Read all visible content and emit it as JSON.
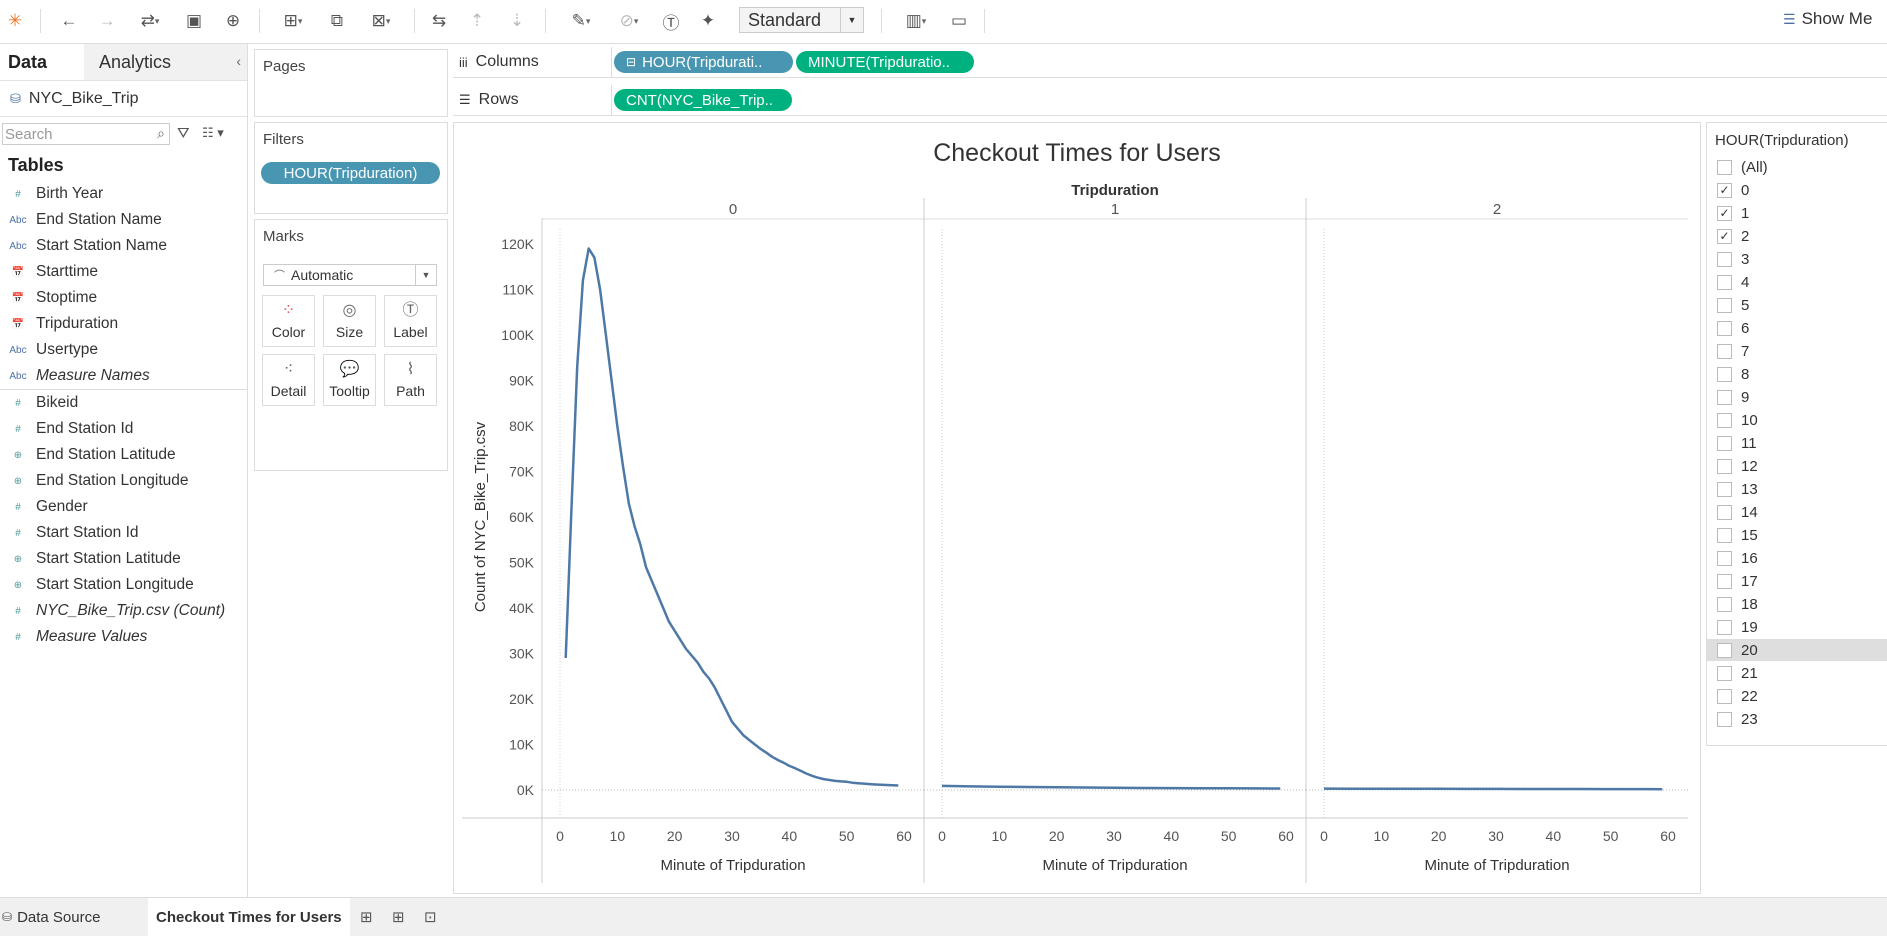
{
  "toolbar": {
    "view_mode": "Standard",
    "show_me": "Show Me",
    "icons": [
      "tableau-logo-icon",
      "undo-icon",
      "redo-icon",
      "replay-icon",
      "save-icon",
      "new-datasource-icon",
      "new-worksheet-icon",
      "duplicate-icon",
      "clear-icon",
      "swap-icon",
      "sort-asc-icon",
      "sort-desc-icon",
      "highlight-icon",
      "group-icon",
      "label-icon",
      "pin-icon",
      "fit-icon",
      "presentation-icon"
    ]
  },
  "data_pane": {
    "tab_data": "Data",
    "tab_analytics": "Analytics",
    "datasource": "NYC_Bike_Trip",
    "search_placeholder": "Search",
    "tables_heading": "Tables",
    "dimensions": [
      {
        "type": "#",
        "name": "Birth Year"
      },
      {
        "type": "Abc",
        "name": "End Station Name"
      },
      {
        "type": "Abc",
        "name": "Start Station Name"
      },
      {
        "type": "date",
        "name": "Starttime"
      },
      {
        "type": "date",
        "name": "Stoptime"
      },
      {
        "type": "date",
        "name": "Tripduration"
      },
      {
        "type": "Abc",
        "name": "Usertype"
      },
      {
        "type": "Abc",
        "name": "Measure Names"
      }
    ],
    "measures": [
      {
        "type": "#",
        "name": "Bikeid"
      },
      {
        "type": "#",
        "name": "End Station Id"
      },
      {
        "type": "geo",
        "name": "End Station Latitude"
      },
      {
        "type": "geo",
        "name": "End Station Longitude"
      },
      {
        "type": "#",
        "name": "Gender"
      },
      {
        "type": "#",
        "name": "Start Station Id"
      },
      {
        "type": "geo",
        "name": "Start Station Latitude"
      },
      {
        "type": "geo",
        "name": "Start Station Longitude"
      },
      {
        "type": "#",
        "name": "NYC_Bike_Trip.csv (Count)"
      },
      {
        "type": "#",
        "name": "Measure Values"
      }
    ]
  },
  "pages_card": {
    "title": "Pages"
  },
  "filters_card": {
    "title": "Filters",
    "pill": "HOUR(Tripduration)"
  },
  "marks_card": {
    "title": "Marks",
    "type": "Automatic",
    "buttons": [
      "Color",
      "Size",
      "Label",
      "Detail",
      "Tooltip",
      "Path"
    ]
  },
  "shelves": {
    "columns_label": "Columns",
    "columns_pills": [
      "HOUR(Tripdurati..",
      "MINUTE(Tripduratio.."
    ],
    "rows_label": "Rows",
    "rows_pills": [
      "CNT(NYC_Bike_Trip.."
    ]
  },
  "chart_data": {
    "type": "line",
    "title": "Checkout Times for Users",
    "header_label": "Tripduration",
    "panels": [
      "0",
      "1",
      "2"
    ],
    "xlabel": "Minute of Tripduration",
    "ylabel": "Count of NYC_Bike_Trip.csv",
    "xlim": [
      0,
      60
    ],
    "ylim": [
      0,
      120000
    ],
    "xticks": [
      "0",
      "10",
      "20",
      "30",
      "40",
      "50",
      "60"
    ],
    "yticks": [
      "0K",
      "10K",
      "20K",
      "30K",
      "40K",
      "50K",
      "60K",
      "70K",
      "80K",
      "90K",
      "100K",
      "110K",
      "120K"
    ],
    "line_color": "#4e79a7",
    "series": [
      {
        "panel": "0",
        "x": [
          1,
          2,
          3,
          4,
          5,
          6,
          7,
          8,
          9,
          10,
          11,
          12,
          13,
          14,
          15,
          16,
          17,
          18,
          19,
          20,
          21,
          22,
          23,
          24,
          25,
          26,
          27,
          28,
          29,
          30,
          31,
          32,
          33,
          34,
          35,
          36,
          37,
          38,
          39,
          40,
          41,
          42,
          43,
          44,
          45,
          46,
          47,
          48,
          49,
          50,
          51,
          52,
          53,
          54,
          55,
          56,
          57,
          58,
          59
        ],
        "y": [
          29000,
          62000,
          93000,
          112000,
          119000,
          117000,
          110000,
          100000,
          90000,
          80000,
          71000,
          63000,
          58000,
          54000,
          49000,
          46000,
          43000,
          40000,
          37000,
          35000,
          33000,
          31000,
          29500,
          28000,
          26000,
          24500,
          22500,
          20000,
          17500,
          15000,
          13500,
          12000,
          11000,
          10000,
          9000,
          8200,
          7300,
          6600,
          6000,
          5300,
          4800,
          4200,
          3600,
          3100,
          2700,
          2400,
          2200,
          2000,
          1900,
          1800,
          1600,
          1500,
          1400,
          1300,
          1200,
          1150,
          1100,
          1050,
          1000
        ]
      },
      {
        "panel": "1",
        "x": [
          0,
          5,
          10,
          15,
          20,
          25,
          30,
          35,
          40,
          45,
          50,
          55,
          59
        ],
        "y": [
          900,
          800,
          700,
          650,
          600,
          550,
          500,
          450,
          420,
          400,
          380,
          350,
          330
        ]
      },
      {
        "panel": "2",
        "x": [
          0,
          5,
          10,
          15,
          20,
          25,
          30,
          35,
          40,
          45,
          50,
          55,
          59
        ],
        "y": [
          300,
          290,
          280,
          270,
          260,
          250,
          240,
          230,
          220,
          210,
          200,
          190,
          180
        ]
      }
    ]
  },
  "filter_card": {
    "title": "HOUR(Tripduration)",
    "items": [
      {
        "label": "(All)",
        "checked": false
      },
      {
        "label": "0",
        "checked": true
      },
      {
        "label": "1",
        "checked": true
      },
      {
        "label": "2",
        "checked": true
      },
      {
        "label": "3",
        "checked": false
      },
      {
        "label": "4",
        "checked": false
      },
      {
        "label": "5",
        "checked": false
      },
      {
        "label": "6",
        "checked": false
      },
      {
        "label": "7",
        "checked": false
      },
      {
        "label": "8",
        "checked": false
      },
      {
        "label": "9",
        "checked": false
      },
      {
        "label": "10",
        "checked": false
      },
      {
        "label": "11",
        "checked": false
      },
      {
        "label": "12",
        "checked": false
      },
      {
        "label": "13",
        "checked": false
      },
      {
        "label": "14",
        "checked": false
      },
      {
        "label": "15",
        "checked": false
      },
      {
        "label": "16",
        "checked": false
      },
      {
        "label": "17",
        "checked": false
      },
      {
        "label": "18",
        "checked": false
      },
      {
        "label": "19",
        "checked": false
      },
      {
        "label": "20",
        "checked": false,
        "hover": true
      },
      {
        "label": "21",
        "checked": false
      },
      {
        "label": "22",
        "checked": false
      },
      {
        "label": "23",
        "checked": false
      }
    ]
  },
  "bottom_tabs": {
    "data_source": "Data Source",
    "sheet": "Checkout Times for Users"
  }
}
